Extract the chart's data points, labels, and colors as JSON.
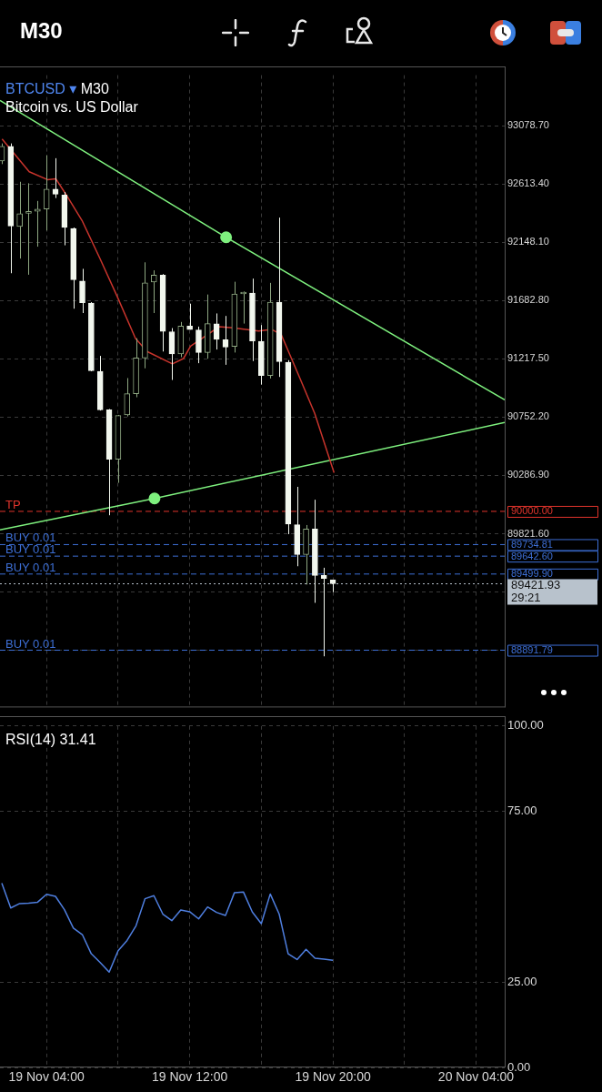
{
  "chart_data": [
    {
      "type": "candlestick",
      "title": "BTCUSD ▾ M30",
      "subtitle": "Bitcoin vs. US Dollar",
      "annotations": [
        "M30",
        {
          "text": "TP",
          "y": 90000
        },
        {
          "text": "BUY 0.01",
          "y": 89734.81
        },
        {
          "text": "BUY 0.01",
          "y": 89642.6
        },
        {
          "text": "BUY 0.01",
          "y": 89499.9
        },
        {
          "text": "BUY 0.01",
          "y": 88891.79
        },
        "29:21"
      ],
      "x": [
        "--11-19T01:30",
        "--11-19T02:00",
        "--11-19T02:30",
        "--11-19T03:00",
        "--11-19T03:30",
        "--11-19T04:00",
        "--11-19T04:30",
        "--11-19T05:00",
        "--11-19T05:30",
        "--11-19T06:00",
        "--11-19T06:30",
        "--11-19T07:00",
        "--11-19T07:30",
        "--11-19T08:00",
        "--11-19T08:30",
        "--11-19T09:00",
        "--11-19T09:30",
        "--11-19T10:00",
        "--11-19T10:30",
        "--11-19T11:00",
        "--11-19T11:30",
        "--11-19T12:00",
        "--11-19T12:30",
        "--11-19T13:00",
        "--11-19T13:30",
        "--11-19T14:00",
        "--11-19T14:30",
        "--11-19T15:00",
        "--11-19T15:30",
        "--11-19T16:00",
        "--11-19T16:30",
        "--11-19T17:00",
        "--11-19T17:30",
        "--11-19T18:00",
        "--11-19T18:30",
        "--11-19T19:00",
        "--11-19T19:30",
        "--11-19T20:00"
      ],
      "ohlc": [
        [
          92796,
          92937,
          92772,
          92914
        ],
        [
          92914,
          92937,
          91901,
          92278
        ],
        [
          92273,
          92631,
          92018,
          92377
        ],
        [
          92379,
          92619,
          91889,
          92391
        ],
        [
          92395,
          92478,
          92113,
          92412
        ],
        [
          92414,
          92843,
          92242,
          92572
        ],
        [
          92572,
          92819,
          92501,
          92532
        ],
        [
          92525,
          92549,
          92124,
          92266
        ],
        [
          92259,
          92266,
          91618,
          91849
        ],
        [
          91839,
          91936,
          91583,
          91665
        ],
        [
          91663,
          91670,
          91118,
          91123
        ],
        [
          91118,
          91241,
          90805,
          90810
        ],
        [
          90810,
          90817,
          89969,
          90416
        ],
        [
          90416,
          90770,
          90228,
          90765
        ],
        [
          90770,
          91064,
          90758,
          90939
        ],
        [
          90939,
          91382,
          90911,
          91224
        ],
        [
          91224,
          91988,
          91142,
          91825
        ],
        [
          91830,
          91924,
          91583,
          91886
        ],
        [
          91886,
          91894,
          91276,
          91437
        ],
        [
          91434,
          91463,
          91049,
          91256
        ],
        [
          91256,
          91512,
          91231,
          91480
        ],
        [
          91480,
          91658,
          91451,
          91451
        ],
        [
          91448,
          91475,
          91183,
          91268
        ],
        [
          91268,
          91731,
          91219,
          91499
        ],
        [
          91497,
          91580,
          91292,
          91373
        ],
        [
          91370,
          91560,
          91170,
          91312
        ],
        [
          91317,
          91833,
          91268,
          91736
        ],
        [
          91736,
          91755,
          91499,
          91750
        ],
        [
          91743,
          91858,
          91200,
          91361
        ],
        [
          91358,
          91487,
          91012,
          91085
        ],
        [
          91085,
          91824,
          91061,
          91670
        ],
        [
          91670,
          92345,
          91073,
          91195
        ],
        [
          91190,
          91207,
          89818,
          89898
        ],
        [
          89894,
          90196,
          89562,
          89655
        ],
        [
          89655,
          89891,
          89416,
          89859
        ],
        [
          89859,
          90093,
          89270,
          89489
        ],
        [
          89489,
          89550,
          88843,
          89465
        ],
        [
          89452,
          89452,
          89355,
          89421.93
        ]
      ],
      "colors": [
        "#8fa882",
        "#f2f7ee",
        "#8fa882",
        "#8fa882",
        "#8fa882",
        "#8fa882",
        "#f2f7ee",
        "#f2f7ee",
        "#f2f7ee",
        "#f2f7ee",
        "#f2f7ee",
        "#f2f7ee",
        "#f2f7ee",
        "#8fa882",
        "#8fa882",
        "#8fa882",
        "#8fa882",
        "#8fa882",
        "#f2f7ee",
        "#f2f7ee",
        "#8fa882",
        "#f2f7ee",
        "#f2f7ee",
        "#8fa882",
        "#f2f7ee",
        "#f2f7ee",
        "#8fa882",
        "#8fa882",
        "#f2f7ee",
        "#f2f7ee",
        "#8fa882",
        "#f2f7ee",
        "#f2f7ee",
        "#f2f7ee",
        "#8fa882",
        "#f2f7ee",
        "#f2f7ee",
        "#f2f7ee"
      ],
      "series": [
        {
          "type": "line",
          "color": "#c8342c",
          "x": [
            "--11-19T01:31",
            "--11-19T03:02",
            "--11-19T04:03",
            "--11-19T04:31",
            "--11-19T05:04",
            "--11-19T05:59",
            "--11-19T06:59",
            "--11-19T07:57",
            "--11-19T08:58",
            "--11-19T09:37",
            "--11-19T11:02",
            "--11-19T11:39",
            "--11-19T12:03",
            "--11-19T13:38",
            "--11-19T14:17",
            "--11-19T15:51",
            "--11-19T16:34",
            "--11-19T17:07",
            "--11-19T18:08",
            "--11-19T18:59",
            "--11-19T20:04"
          ],
          "values": [
            92973,
            92711,
            92648,
            92655,
            92535,
            92322,
            92019,
            91715,
            91382,
            91276,
            91177,
            91220,
            91319,
            91474,
            91467,
            91439,
            91453,
            91411,
            91071,
            90782,
            90308
          ]
        },
        {
          "type": "line",
          "color": "#7ef07e",
          "x": [
            "--11-19T01:24",
            "--11-19T14:02",
            "--11-20T05:36"
          ],
          "values": [
            93280,
            92188,
            90890
          ]
        },
        {
          "type": "line",
          "color": "#7ef07e",
          "x": [
            "--11-19T01:24",
            "--11-19T10:02",
            "--11-20T05:36"
          ],
          "values": [
            89852,
            90103,
            90710
          ]
        },
        {
          "type": "scatter",
          "color": "#7ef07e",
          "marker": "circle",
          "x": [
            "--11-19T14:02"
          ],
          "values": [
            92188
          ]
        },
        {
          "type": "scatter",
          "color": "#7ef07e",
          "marker": "circle",
          "x": [
            "--11-19T10:02"
          ],
          "values": [
            90103
          ]
        }
      ],
      "xlim": [
        "--11-19T01:24",
        "--11-20T05:36"
      ],
      "xticks": [
        {
          "value": "--11-19T04:00",
          "label": null
        },
        {
          "value": "--11-19T08:00",
          "label": null
        },
        {
          "value": "--11-19T12:00",
          "label": null
        },
        {
          "value": "--11-19T16:00",
          "label": null
        },
        {
          "value": "--11-19T20:00",
          "label": null
        },
        {
          "value": "--11-20T00:00",
          "label": null
        },
        {
          "value": "--11-20T04:00",
          "label": null
        }
      ],
      "ylim": [
        88435,
        93482
      ],
      "yticks": [
        {
          "value": 93078.7,
          "label": "93078.70"
        },
        {
          "value": 92613.4,
          "label": "92613.40"
        },
        {
          "value": 92148.1,
          "label": "92148.10"
        },
        {
          "value": 91682.8,
          "label": "91682.80"
        },
        {
          "value": 91217.5,
          "label": "91217.50"
        },
        {
          "value": 90752.2,
          "label": "90752.20"
        },
        {
          "value": 90286.9,
          "label": "90286.90"
        },
        {
          "value": 89821.6,
          "label": "89821.60"
        },
        {
          "value": 89356.3,
          "label": null
        },
        {
          "value": 88891,
          "label": null
        }
      ],
      "ref_lines": [
        {
          "axis": "y",
          "value": 90000,
          "label": "90000.00",
          "color": "#e0342c",
          "line_style": "dashed"
        },
        {
          "axis": "y",
          "value": 89734.81,
          "label": "89734.81",
          "color": "#3d6fd6",
          "line_style": "dashed"
        },
        {
          "axis": "y",
          "value": 89642.6,
          "label": "89642.60",
          "color": "#3d6fd6",
          "line_style": "dashed"
        },
        {
          "axis": "y",
          "value": 89499.9,
          "label": "89499.90",
          "color": "#3d6fd6",
          "line_style": "dashed"
        },
        {
          "axis": "y",
          "value": 88891.79,
          "label": "88891.79",
          "color": "#3d6fd6",
          "line_style": "dashed"
        },
        {
          "axis": "y",
          "value": 89421.93,
          "label": "89421.93",
          "color": "#b8c2cc",
          "line_style": "dotted"
        }
      ],
      "grid": true,
      "tick_labels": "y"
    },
    {
      "type": "line",
      "title": "RSI(14) 31.41",
      "x": [
        "--11-19T01:30",
        "--11-19T02:00",
        "--11-19T02:30",
        "--11-19T03:00",
        "--11-19T03:30",
        "--11-19T04:00",
        "--11-19T04:30",
        "--11-19T05:00",
        "--11-19T05:30",
        "--11-19T06:00",
        "--11-19T06:30",
        "--11-19T07:00",
        "--11-19T07:30",
        "--11-19T08:00",
        "--11-19T08:30",
        "--11-19T09:00",
        "--11-19T09:30",
        "--11-19T10:00",
        "--11-19T10:30",
        "--11-19T11:00",
        "--11-19T11:30",
        "--11-19T12:00",
        "--11-19T12:30",
        "--11-19T13:00",
        "--11-19T13:30",
        "--11-19T14:00",
        "--11-19T14:30",
        "--11-19T15:00",
        "--11-19T15:30",
        "--11-19T16:00",
        "--11-19T16:30",
        "--11-19T17:00",
        "--11-19T17:30",
        "--11-19T18:00",
        "--11-19T18:30",
        "--11-19T19:00",
        "--11-19T19:30",
        "--11-19T20:00"
      ],
      "series": [
        {
          "color": "#4f7fe0",
          "values": [
            54.0,
            46.7,
            48.0,
            48.1,
            48.4,
            50.7,
            50.1,
            46.2,
            40.8,
            38.9,
            33.3,
            30.7,
            27.9,
            34.2,
            37.2,
            41.5,
            49.4,
            50.3,
            44.9,
            43.0,
            46.1,
            45.6,
            43.5,
            47.0,
            45.4,
            44.5,
            51.2,
            51.4,
            45.5,
            42.1,
            50.8,
            44.9,
            33.3,
            31.6,
            34.6,
            32.0,
            31.7,
            31.4
          ]
        }
      ],
      "xlim": [
        "--11-19T01:24",
        "--11-20T05:36"
      ],
      "xticks": [
        {
          "value": "--11-19T04:00",
          "label": "19 Nov 04:00"
        },
        {
          "value": "--11-19T08:00",
          "label": null
        },
        {
          "value": "--11-19T12:00",
          "label": "19 Nov 12:00"
        },
        {
          "value": "--11-19T16:00",
          "label": null
        },
        {
          "value": "--11-19T20:00",
          "label": "19 Nov 20:00"
        },
        {
          "value": "--11-20T00:00",
          "label": null
        },
        {
          "value": "--11-20T04:00",
          "label": "20 Nov 04:00"
        }
      ],
      "ylim": [
        0,
        100
      ],
      "yticks": [
        {
          "value": 100,
          "label": "100.00"
        },
        {
          "value": 75,
          "label": "75.00"
        },
        {
          "value": 25,
          "label": "25.00"
        },
        {
          "value": 0,
          "label": "0.00"
        }
      ],
      "grid": true
    }
  ]
}
